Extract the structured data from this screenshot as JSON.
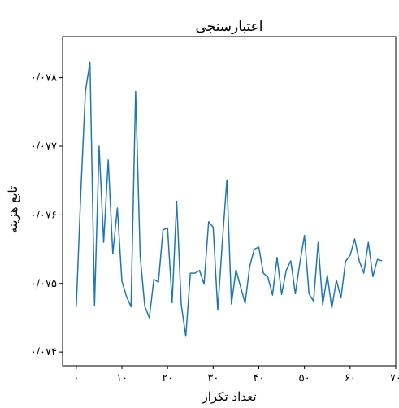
{
  "chart_data": {
    "type": "line",
    "title": "اعتبارسنجی",
    "xlabel": "تعداد تکرار",
    "ylabel": "تابع هزینه",
    "xlim": [
      -3,
      70
    ],
    "ylim": [
      0.0738,
      0.0786
    ],
    "x_ticks": [
      0,
      10,
      20,
      30,
      40,
      50,
      60,
      70
    ],
    "x_tick_labels": [
      "۰",
      "۱۰",
      "۲۰",
      "۳۰",
      "۴۰",
      "۵۰",
      "۶۰",
      "۷۰"
    ],
    "y_ticks": [
      0.074,
      0.075,
      0.076,
      0.077,
      0.078
    ],
    "y_tick_labels": [
      "۰/۰۷۴",
      "۰/۰۷۵",
      "۰/۰۷۶",
      "۰/۰۷۷",
      "۰/۰۷۸"
    ],
    "grid": false,
    "line_color": "#1f77b4",
    "series": [
      {
        "x": [
          0,
          1,
          2,
          3,
          4,
          5,
          6,
          7,
          8,
          9,
          10,
          11,
          12,
          13,
          14,
          15,
          16,
          17,
          18,
          19,
          20,
          21,
          22,
          23,
          24,
          25,
          26,
          27,
          28,
          29,
          30,
          31,
          32,
          33,
          34,
          35,
          36,
          37,
          38,
          39,
          40,
          41,
          42,
          43,
          44,
          45,
          46,
          47,
          48,
          49,
          50,
          51,
          52,
          53,
          54,
          55,
          56,
          57,
          58,
          59,
          60,
          61,
          62,
          63,
          64,
          65,
          66,
          67
        ],
        "values": [
          0.07466,
          0.07634,
          0.0778,
          0.07823,
          0.07468,
          0.077,
          0.0756,
          0.0768,
          0.07543,
          0.0761,
          0.07503,
          0.07481,
          0.07466,
          0.0778,
          0.0754,
          0.07467,
          0.0745,
          0.07506,
          0.07502,
          0.07578,
          0.07581,
          0.07472,
          0.0762,
          0.07469,
          0.07423,
          0.07515,
          0.07515,
          0.07519,
          0.07499,
          0.0759,
          0.07582,
          0.07461,
          0.0756,
          0.07651,
          0.0747,
          0.0752,
          0.07495,
          0.07471,
          0.07525,
          0.0755,
          0.07553,
          0.07515,
          0.07509,
          0.07483,
          0.07538,
          0.07484,
          0.07519,
          0.07533,
          0.07485,
          0.0753,
          0.0757,
          0.07485,
          0.07474,
          0.0756,
          0.07469,
          0.07512,
          0.07464,
          0.07505,
          0.07479,
          0.07532,
          0.07541,
          0.07565,
          0.07533,
          0.07515,
          0.0756,
          0.0751,
          0.07535,
          0.07533
        ]
      }
    ]
  }
}
